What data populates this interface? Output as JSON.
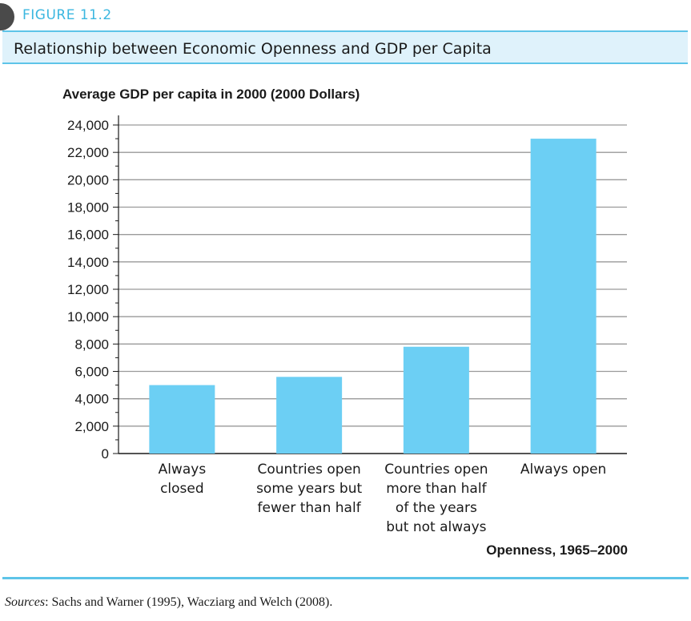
{
  "figure": {
    "number_label": "FIGURE 11.2",
    "title": "Relationship between Economic Openness and GDP per Capita"
  },
  "chart_data": {
    "type": "bar",
    "ylabel": "Average GDP per capita in 2000 (2000 Dollars)",
    "xlabel": "Openness, 1965–2000",
    "categories": [
      [
        "Always",
        "closed"
      ],
      [
        "Countries open",
        "some years but",
        "fewer than half"
      ],
      [
        "Countries open",
        "more than half",
        "of the years",
        "but not always"
      ],
      [
        "Always open"
      ]
    ],
    "values": [
      5000,
      5600,
      7800,
      23000
    ],
    "ylim": [
      0,
      24000
    ],
    "ytick_labels": [
      "0",
      "2,000",
      "4,000",
      "6,000",
      "8,000",
      "10,000",
      "12,000",
      "14,000",
      "16,000",
      "18,000",
      "20,000",
      "22,000",
      "24,000"
    ],
    "grid": true,
    "bar_color": "#6ccff4",
    "grid_color": "#9a9a9a"
  },
  "sources": {
    "label": "Sources",
    "text": ": Sachs and Warner (1995), Wacziarg and Welch (2008)."
  }
}
